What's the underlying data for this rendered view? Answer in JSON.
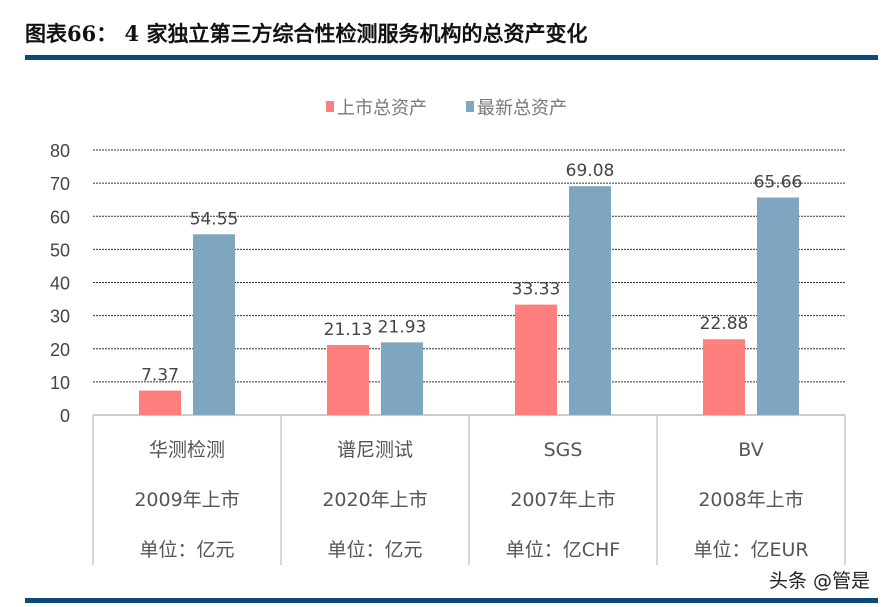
{
  "header": {
    "title": "图表66：  4 家独立第三方综合性检测服务机构的总资产变化"
  },
  "watermark": "头条 @管是",
  "chart_data": {
    "type": "bar",
    "categories": [
      "华测检测",
      "谱尼测试",
      "SGS",
      "BV"
    ],
    "category_sublabels": [
      [
        "2009年上市",
        "单位：亿元"
      ],
      [
        "2020年上市",
        "单位：亿元"
      ],
      [
        "2007年上市",
        "单位：亿CHF"
      ],
      [
        "2008年上市",
        "单位：亿EUR"
      ]
    ],
    "series": [
      {
        "name": "上市总资产",
        "values": [
          7.37,
          21.13,
          33.33,
          22.88
        ],
        "color": "#ff7f7f"
      },
      {
        "name": "最新总资产",
        "values": [
          54.55,
          21.93,
          69.08,
          65.66
        ],
        "color": "#7fa6c0"
      }
    ],
    "ylim": [
      0,
      80
    ],
    "yticks": [
      0,
      10,
      20,
      30,
      40,
      50,
      60,
      70,
      80
    ],
    "grid": true,
    "legend": "top-center",
    "data_labels": [
      "7.37",
      "21.13",
      "33.33",
      "22.88",
      "54.55",
      "21.93",
      "69.08",
      "65.66"
    ]
  }
}
